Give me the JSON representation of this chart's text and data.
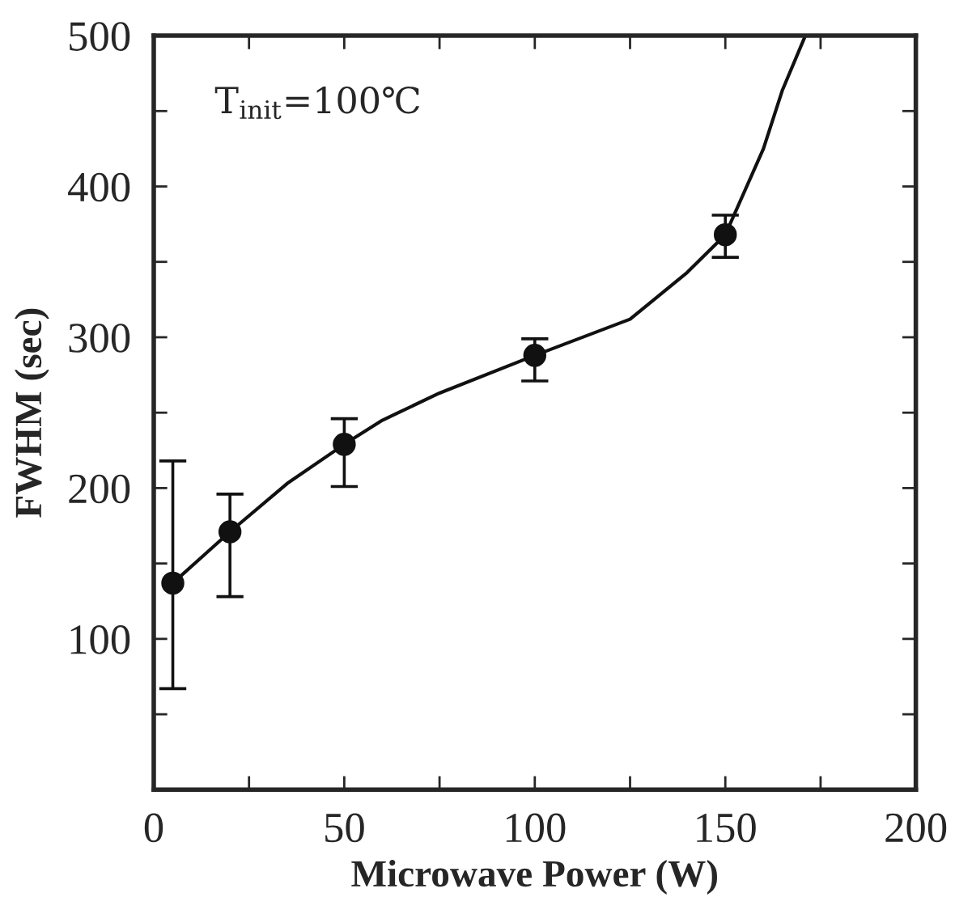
{
  "chart_data": {
    "type": "scatter",
    "xlabel": "Microwave Power (W)",
    "ylabel": "FWHM (sec)",
    "annotations": [
      "T$_{init}$=100℃"
    ],
    "series": [
      {
        "color": "#111111",
        "marker": "circle",
        "x": [
          5,
          20,
          50,
          100,
          150
        ],
        "values": [
          137,
          171,
          229,
          288,
          368
        ],
        "errors": [
          [
            67,
            218
          ],
          [
            128,
            196
          ],
          [
            201,
            246
          ],
          [
            271,
            299
          ],
          [
            353,
            381
          ]
        ]
      },
      {
        "type": "line",
        "color": "#111111",
        "marker": "none",
        "line_style": "solid",
        "x": [
          5,
          20,
          35,
          50,
          60,
          75,
          100,
          125,
          140,
          150,
          160,
          165,
          171
        ],
        "values": [
          137,
          171,
          203,
          229,
          245,
          263,
          288,
          312,
          343,
          368,
          425,
          464,
          500
        ]
      }
    ],
    "xlim": [
      0,
      200
    ],
    "ylim": [
      0,
      500
    ],
    "xticks": [
      0,
      {
        "value": 25,
        "label": null
      },
      50,
      {
        "value": 75,
        "label": null
      },
      100,
      {
        "value": 125,
        "label": null
      },
      150,
      {
        "value": 175,
        "label": null
      },
      200
    ],
    "yticks": [
      {
        "value": 50,
        "label": null
      },
      100,
      {
        "value": 150,
        "label": null
      },
      200,
      {
        "value": 250,
        "label": null
      },
      300,
      {
        "value": 350,
        "label": null
      },
      400,
      {
        "value": 450,
        "label": null
      },
      500
    ],
    "grid": false,
    "legend": false
  }
}
